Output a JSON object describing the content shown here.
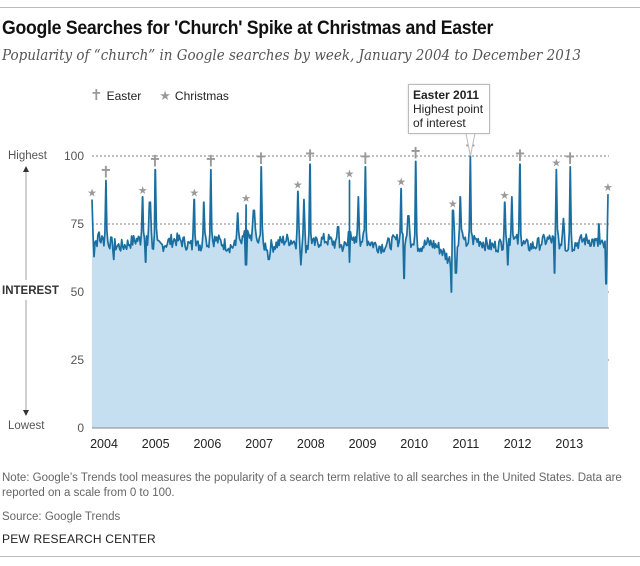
{
  "header": {
    "title": "Google Searches for 'Church' Spike at Christmas and Easter",
    "subtitle": "Popularity of “church” in Google searches by week, January 2004 to December 2013"
  },
  "legend": {
    "easter_label": "Easter",
    "christmas_label": "Christmas",
    "easter_glyph": "✝",
    "christmas_glyph": "★"
  },
  "annotation": {
    "title": "Easter 2011",
    "text_line1": "Highest point",
    "text_line2": "of interest"
  },
  "axis": {
    "side_top": "Highest",
    "side_bottom": "Lowest",
    "side_label": "INTEREST"
  },
  "footer": {
    "note": "Note: Google’s Trends tool measures the popularity of a search term relative to all searches in the United States. Data are reported on a scale from 0 to 100.",
    "source": "Source: Google Trends",
    "org": "PEW RESEARCH CENTER"
  },
  "colors": {
    "line": "#1a6fa0",
    "area": "#c5dff0",
    "marker": "#999999",
    "grid": "#555555"
  },
  "chart_data": {
    "type": "area",
    "title": "Google Searches for 'Church' Spike at Christmas and Easter",
    "subtitle": "Popularity of “church” in Google searches by week, January 2004 to December 2013",
    "xlabel": "",
    "ylabel": "INTEREST",
    "ylim": [
      0,
      100
    ],
    "xlim": [
      2004.0,
      2014.0
    ],
    "yticks": [
      0,
      25,
      50,
      75,
      100
    ],
    "ytick_labels": [
      "0",
      "25",
      "50",
      "75",
      "100"
    ],
    "xticks": [
      2004,
      2005,
      2006,
      2007,
      2008,
      2009,
      2010,
      2011,
      2012,
      2013
    ],
    "xtick_labels": [
      "2004",
      "2005",
      "2006",
      "2007",
      "2008",
      "2009",
      "2010",
      "2011",
      "2012",
      "2013"
    ],
    "grid": true,
    "legend": "top-left",
    "baseline": 68,
    "easter_peaks": [
      {
        "x": 2004.27,
        "y": 91
      },
      {
        "x": 2005.22,
        "y": 95
      },
      {
        "x": 2006.3,
        "y": 95
      },
      {
        "x": 2007.27,
        "y": 96
      },
      {
        "x": 2008.22,
        "y": 97
      },
      {
        "x": 2009.29,
        "y": 96
      },
      {
        "x": 2010.26,
        "y": 98
      },
      {
        "x": 2011.32,
        "y": 100
      },
      {
        "x": 2012.28,
        "y": 97
      },
      {
        "x": 2013.25,
        "y": 96
      }
    ],
    "christmas_peaks": [
      {
        "x": 2004.0,
        "y": 84
      },
      {
        "x": 2004.98,
        "y": 85
      },
      {
        "x": 2005.98,
        "y": 84
      },
      {
        "x": 2006.98,
        "y": 82
      },
      {
        "x": 2007.98,
        "y": 87
      },
      {
        "x": 2008.98,
        "y": 91
      },
      {
        "x": 2009.98,
        "y": 88
      },
      {
        "x": 2010.98,
        "y": 80
      },
      {
        "x": 2011.98,
        "y": 83
      },
      {
        "x": 2012.98,
        "y": 95
      },
      {
        "x": 2013.98,
        "y": 86
      }
    ],
    "secondary_spikes": [
      {
        "x": 2004.14,
        "y": 72
      },
      {
        "x": 2005.12,
        "y": 83
      },
      {
        "x": 2006.16,
        "y": 83
      },
      {
        "x": 2006.82,
        "y": 79
      },
      {
        "x": 2007.13,
        "y": 80
      },
      {
        "x": 2008.1,
        "y": 84
      },
      {
        "x": 2008.76,
        "y": 74
      },
      {
        "x": 2009.15,
        "y": 85
      },
      {
        "x": 2010.12,
        "y": 78
      },
      {
        "x": 2011.12,
        "y": 85
      },
      {
        "x": 2011.16,
        "y": 72
      },
      {
        "x": 2012.12,
        "y": 85
      },
      {
        "x": 2013.12,
        "y": 77
      },
      {
        "x": 2013.8,
        "y": 75
      }
    ],
    "dips": [
      {
        "x": 2004.04,
        "y": 63
      },
      {
        "x": 2004.42,
        "y": 62
      },
      {
        "x": 2005.04,
        "y": 61
      },
      {
        "x": 2006.98,
        "y": 60
      },
      {
        "x": 2007.42,
        "y": 62
      },
      {
        "x": 2008.04,
        "y": 60
      },
      {
        "x": 2008.98,
        "y": 61
      },
      {
        "x": 2010.04,
        "y": 55
      },
      {
        "x": 2010.95,
        "y": 50
      },
      {
        "x": 2011.04,
        "y": 57
      },
      {
        "x": 2012.04,
        "y": 60
      },
      {
        "x": 2012.95,
        "y": 57
      },
      {
        "x": 2013.95,
        "y": 53
      }
    ]
  }
}
